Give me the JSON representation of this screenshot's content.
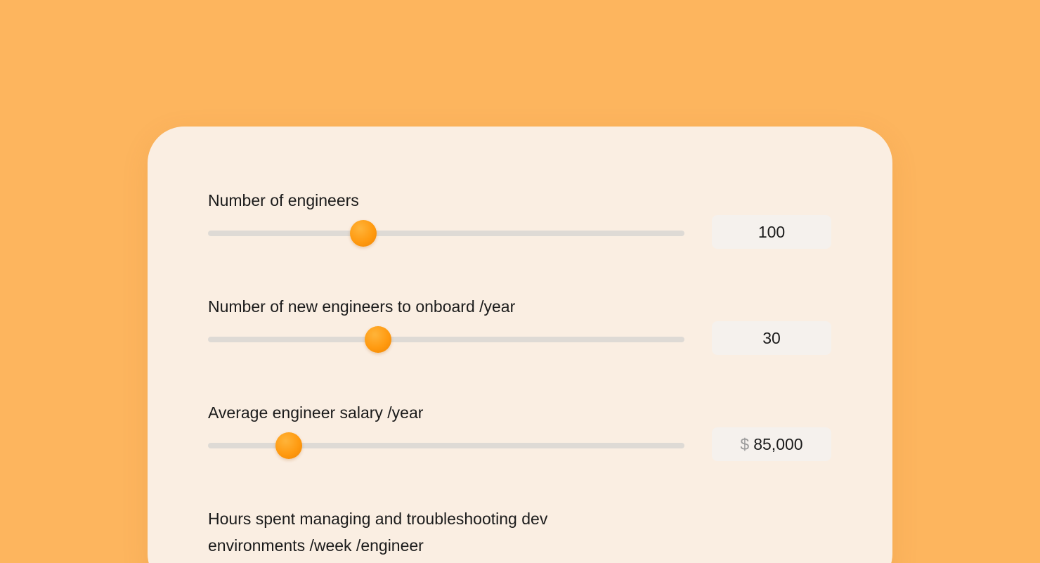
{
  "colors": {
    "page_background": "#FDB55E",
    "card_background": "#FAEEE2",
    "accent": "#FF9A10",
    "track": "#DEDAD5",
    "value_box": "#F5F1ED"
  },
  "fields": [
    {
      "label": "Number of engineers",
      "value": "100",
      "slider_fraction": 0.326
    },
    {
      "label": "Number of new engineers to onboard /year",
      "value": "30",
      "slider_fraction": 0.357
    },
    {
      "label": "Average engineer salary /year",
      "currency_symbol": "$",
      "value": "85,000",
      "slider_fraction": 0.17
    },
    {
      "label": "Hours spent managing and troubleshooting dev environments /week /engineer"
    }
  ]
}
